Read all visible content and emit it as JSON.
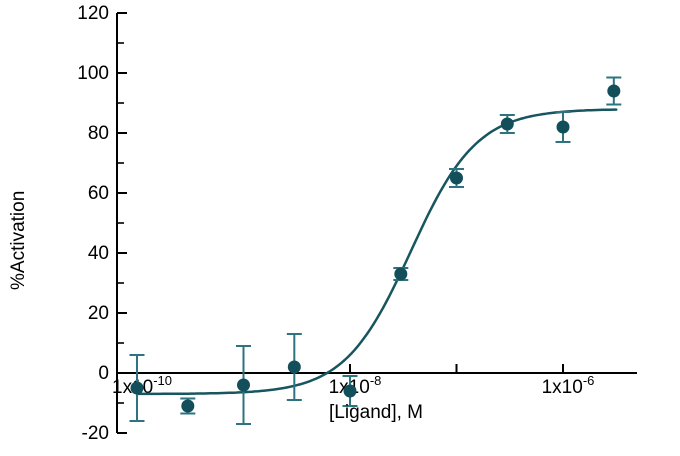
{
  "chart_data": {
    "type": "scatter",
    "title": "",
    "xlabel": "[Ligand], M",
    "ylabel": "%Activation",
    "x_scale": "log10",
    "xlim": [
      6.5e-11,
      5e-06
    ],
    "ylim": [
      -20,
      120
    ],
    "grid": false,
    "legend": "none",
    "y_major_ticks": [
      120,
      100,
      80,
      60,
      40,
      20,
      0,
      -20
    ],
    "y_minor_ticks": [
      110,
      90,
      70,
      50,
      30,
      10,
      -10
    ],
    "x_decade_ticks_log10": [
      -10,
      -9,
      -8,
      -7,
      -6
    ],
    "x_tick_labels": [
      {
        "log10": -10,
        "mantissa": "1x10",
        "exponent": "-10"
      },
      {
        "log10": -8,
        "mantissa": "1x10",
        "exponent": "-8"
      },
      {
        "log10": -6,
        "mantissa": "1x10",
        "exponent": "-6"
      }
    ],
    "points": [
      {
        "x": 1e-10,
        "y": -5,
        "err": 11
      },
      {
        "x": 3e-10,
        "y": -11,
        "err": 2.5
      },
      {
        "x": 1e-09,
        "y": -4,
        "err": 13
      },
      {
        "x": 3e-09,
        "y": 2,
        "err": 11
      },
      {
        "x": 1e-08,
        "y": -6,
        "err": 5
      },
      {
        "x": 3e-08,
        "y": 33,
        "err": 2
      },
      {
        "x": 1e-07,
        "y": 65,
        "err": 3
      },
      {
        "x": 3e-07,
        "y": 83,
        "err": 3
      },
      {
        "x": 1e-06,
        "y": 82,
        "err": 5
      },
      {
        "x": 3e-06,
        "y": 94,
        "err": 4.5
      }
    ],
    "fit": {
      "model": "4-parameter logistic (sigmoidal dose-response)",
      "bottom": -7,
      "top": 88,
      "log10_ec50": -7.43,
      "hill": 1.4,
      "curve_log10_range": [
        -10,
        -5.49
      ]
    },
    "colors": {
      "marker": "#134f5b",
      "error_bar": "#2e7380",
      "curve": "#17555f",
      "axis": "#000000",
      "background": "#ffffff"
    }
  }
}
